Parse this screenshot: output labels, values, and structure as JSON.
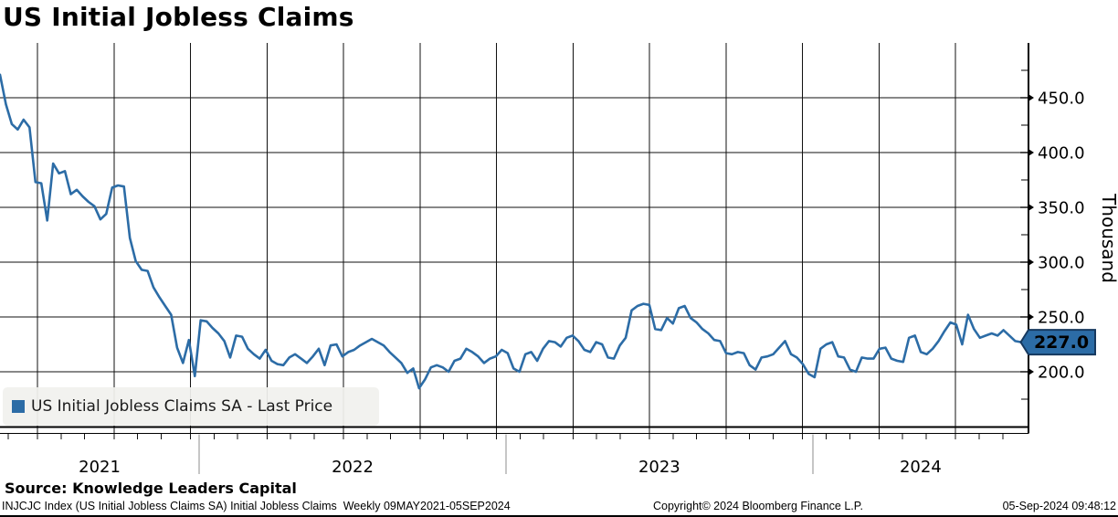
{
  "header": {
    "title": "US Initial Jobless Claims"
  },
  "legend": {
    "swatch_color": "#2c6ca6",
    "label": "US Initial Jobless Claims SA - Last Price"
  },
  "source": {
    "text": "Source: Knowledge Leaders Capital"
  },
  "footer": {
    "left": "INJCJC Index (US Initial Jobless Claims SA) Initial Jobless Claims  Weekly 09MAY2021-05SEP2024",
    "center": "Copyright© 2024 Bloomberg Finance L.P.",
    "right": "05-Sep-2024 09:48:12"
  },
  "chart_data": {
    "type": "line",
    "title": "US Initial Jobless Claims",
    "ylabel": "Thousand",
    "grid": "horizontal every 50, vertical every 13 weeks",
    "legend_position": "bottom-left",
    "x_axis": {
      "start": "09MAY2021",
      "end": "05SEP2024",
      "frequency": "Weekly",
      "year_labels": [
        "2021",
        "2022",
        "2023",
        "2024"
      ]
    },
    "y_axis": {
      "range": [
        150,
        500
      ],
      "major_ticks": [
        {
          "value": 450,
          "label": "450.0"
        },
        {
          "value": 400,
          "label": "400.0"
        },
        {
          "value": 350,
          "label": "350.0"
        },
        {
          "value": 300,
          "label": "300.0"
        },
        {
          "value": 250,
          "label": "250.0"
        },
        {
          "value": 200,
          "label": "200.0"
        }
      ],
      "minor_tick_values": [
        175,
        225,
        275,
        325,
        375,
        425,
        475
      ]
    },
    "last_price": {
      "value": 227.0,
      "label": "227.0",
      "fill": "#2c6ca6",
      "border": "#16395f",
      "text_color": "#ffffff"
    },
    "series": [
      {
        "name": "US Initial Jobless Claims SA - Last Price",
        "color": "#2c6ca6",
        "units": "thousand",
        "values": [
          471,
          444,
          426,
          421,
          430,
          423,
          373,
          372,
          338,
          390,
          381,
          383,
          362,
          366,
          360,
          355,
          351,
          339,
          344,
          368,
          370,
          369,
          322,
          301,
          293,
          292,
          277,
          268,
          260,
          252,
          222,
          208,
          229,
          196,
          247,
          246,
          240,
          235,
          228,
          213,
          233,
          232,
          221,
          216,
          212,
          220,
          210,
          207,
          206,
          213,
          216,
          212,
          208,
          214,
          221,
          206,
          224,
          225,
          214,
          218,
          220,
          224,
          227,
          230,
          227,
          224,
          218,
          213,
          208,
          199,
          203,
          185,
          193,
          204,
          206,
          204,
          200,
          210,
          212,
          221,
          218,
          214,
          208,
          212,
          214,
          220,
          217,
          203,
          200,
          216,
          218,
          210,
          221,
          228,
          227,
          223,
          231,
          233,
          228,
          220,
          218,
          227,
          225,
          213,
          212,
          224,
          231,
          256,
          260,
          262,
          261,
          239,
          238,
          249,
          244,
          258,
          260,
          249,
          245,
          239,
          235,
          229,
          228,
          217,
          216,
          218,
          217,
          206,
          202,
          213,
          214,
          216,
          222,
          228,
          216,
          213,
          207,
          198,
          195,
          221,
          225,
          227,
          214,
          213,
          202,
          200,
          213,
          212,
          212,
          221,
          222,
          212,
          210,
          209,
          231,
          233,
          218,
          216,
          221,
          228,
          237,
          245,
          243,
          225,
          252,
          239,
          231,
          233,
          235,
          233,
          238,
          233,
          228,
          227
        ]
      }
    ]
  }
}
